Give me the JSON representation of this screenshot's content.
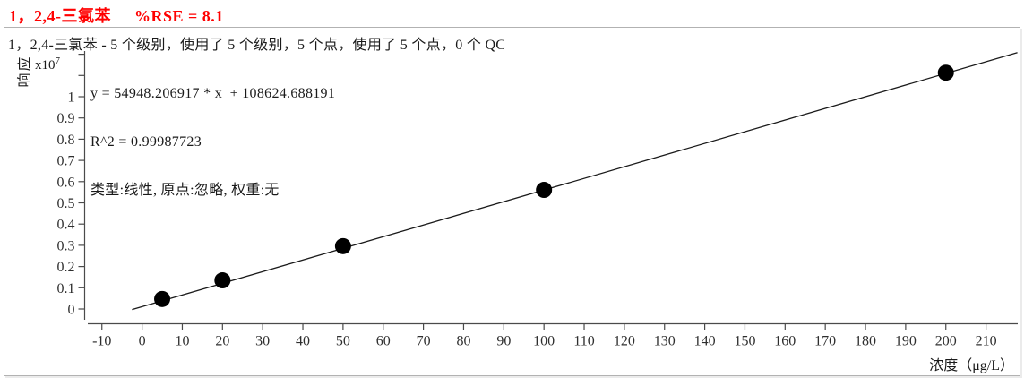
{
  "header": {
    "compound": "1，2,4-三氯苯",
    "rse": "%RSE = 8.1",
    "accent_color": "#ff0000"
  },
  "subtitle": "1，2,4-三氯苯 - 5 个级别，使用了 5 个级别，5 个点，使用了 5 个点，0 个 QC",
  "stats": {
    "equation": "y = 54948.206917 * x  + 108624.688191",
    "r2": "R^2 = 0.99987723",
    "model": "类型:线性, 原点:忽略, 权重:无"
  },
  "axes": {
    "y_label": "响应",
    "y_scale_prefix": "x10",
    "y_scale_exp": "7",
    "x_label": "浓度（μg/L）"
  },
  "chart_data": {
    "type": "scatter",
    "title": "1，2,4-三氯苯  %RSE = 8.1",
    "xlabel": "浓度（μg/L）",
    "ylabel": "响应 x10^7",
    "x_ticks": [
      -10,
      0,
      10,
      20,
      30,
      40,
      50,
      60,
      70,
      80,
      90,
      100,
      110,
      120,
      130,
      140,
      150,
      160,
      170,
      180,
      190,
      200,
      210
    ],
    "y_ticks": [
      0,
      0.1,
      0.2,
      0.3,
      0.4,
      0.5,
      0.6,
      0.7,
      0.8,
      0.9,
      1
    ],
    "y_ticks_unlabeled": [
      1.1,
      1.2
    ],
    "xlim": [
      -13,
      218
    ],
    "ylim_e7": [
      -0.07,
      1.22
    ],
    "grid": false,
    "points": {
      "concentration_ug_L": [
        5,
        20,
        50,
        100,
        200
      ],
      "response_e7": [
        0.047,
        0.135,
        0.296,
        0.561,
        1.113
      ]
    },
    "fit": {
      "type_label": "线性",
      "origin_label": "忽略",
      "weight_label": "无",
      "slope": 54948.206917,
      "intercept": 108624.688191,
      "r_squared": 0.99987723,
      "rse_percent": 8.1,
      "line_x_range": [
        -2.5,
        217.8
      ]
    },
    "point_color": "#000000",
    "line_color": "#1a1a1a",
    "axis_color": "#4a4a4a",
    "tick_label_color": "#2e2e2e"
  }
}
